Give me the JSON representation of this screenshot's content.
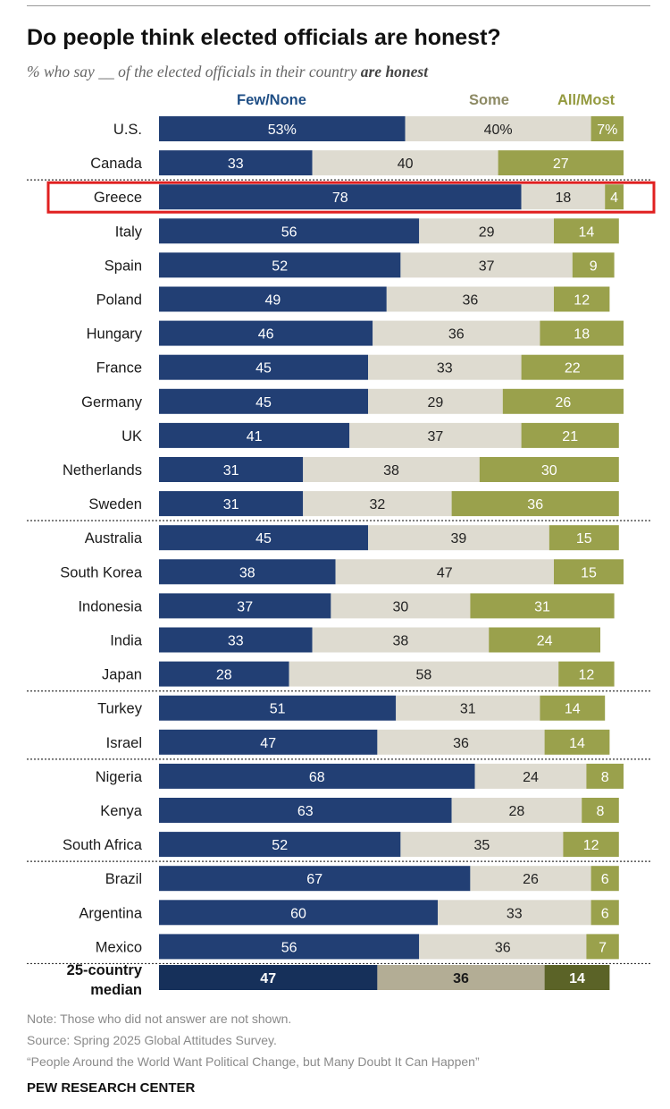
{
  "title": "Do people think elected officials are honest?",
  "subtitle_pre": "% who say __ of the elected officials in their country ",
  "subtitle_em": "are honest",
  "legend": [
    {
      "label": "Few/None",
      "color": "#1f4e85"
    },
    {
      "label": "Some",
      "color": "#8d8a64"
    },
    {
      "label": "All/Most",
      "color": "#949a3f"
    }
  ],
  "colors": {
    "few": "#223f74",
    "some": "#dedbd0",
    "most": "#9aa14c",
    "median_few": "#16305a",
    "median_some": "#b3ad95",
    "median_most": "#5b6327",
    "highlight": "#e02020"
  },
  "highlighted_category": "Greece",
  "chart_data": {
    "type": "bar",
    "orientation": "horizontal",
    "stacked": true,
    "categories": [
      "U.S.",
      "Canada",
      "Greece",
      "Italy",
      "Spain",
      "Poland",
      "Hungary",
      "France",
      "Germany",
      "UK",
      "Netherlands",
      "Sweden",
      "Australia",
      "South Korea",
      "Indonesia",
      "India",
      "Japan",
      "Turkey",
      "Israel",
      "Nigeria",
      "Kenya",
      "South Africa",
      "Brazil",
      "Argentina",
      "Mexico"
    ],
    "series": [
      {
        "name": "Few/None",
        "values": [
          53,
          33,
          78,
          56,
          52,
          49,
          46,
          45,
          45,
          41,
          31,
          31,
          45,
          38,
          37,
          33,
          28,
          51,
          47,
          68,
          63,
          52,
          67,
          60,
          56
        ]
      },
      {
        "name": "Some",
        "values": [
          40,
          40,
          18,
          29,
          37,
          36,
          36,
          33,
          29,
          37,
          38,
          32,
          39,
          47,
          30,
          38,
          58,
          31,
          36,
          24,
          28,
          35,
          26,
          33,
          36
        ]
      },
      {
        "name": "All/Most",
        "values": [
          7,
          27,
          4,
          14,
          9,
          12,
          18,
          22,
          26,
          21,
          30,
          36,
          15,
          15,
          31,
          24,
          12,
          14,
          14,
          8,
          8,
          12,
          6,
          6,
          7
        ]
      }
    ],
    "value_labels": [
      [
        "53%",
        "40%",
        "7%"
      ]
    ],
    "group_breaks_after": [
      "Canada",
      "Sweden",
      "Japan",
      "Israel",
      "South Africa",
      "Mexico"
    ],
    "median": {
      "label_line1": "25-country",
      "label_line2": "median",
      "values": [
        47,
        36,
        14
      ]
    },
    "xlim": [
      0,
      100
    ],
    "grid": false,
    "legend_position": "top"
  },
  "notes": [
    "Note: Those who did not answer are not shown.",
    "Source: Spring 2025 Global Attitudes Survey.",
    "“People Around the World Want Political Change, but Many Doubt It Can Happen”"
  ],
  "footer": "PEW RESEARCH CENTER"
}
